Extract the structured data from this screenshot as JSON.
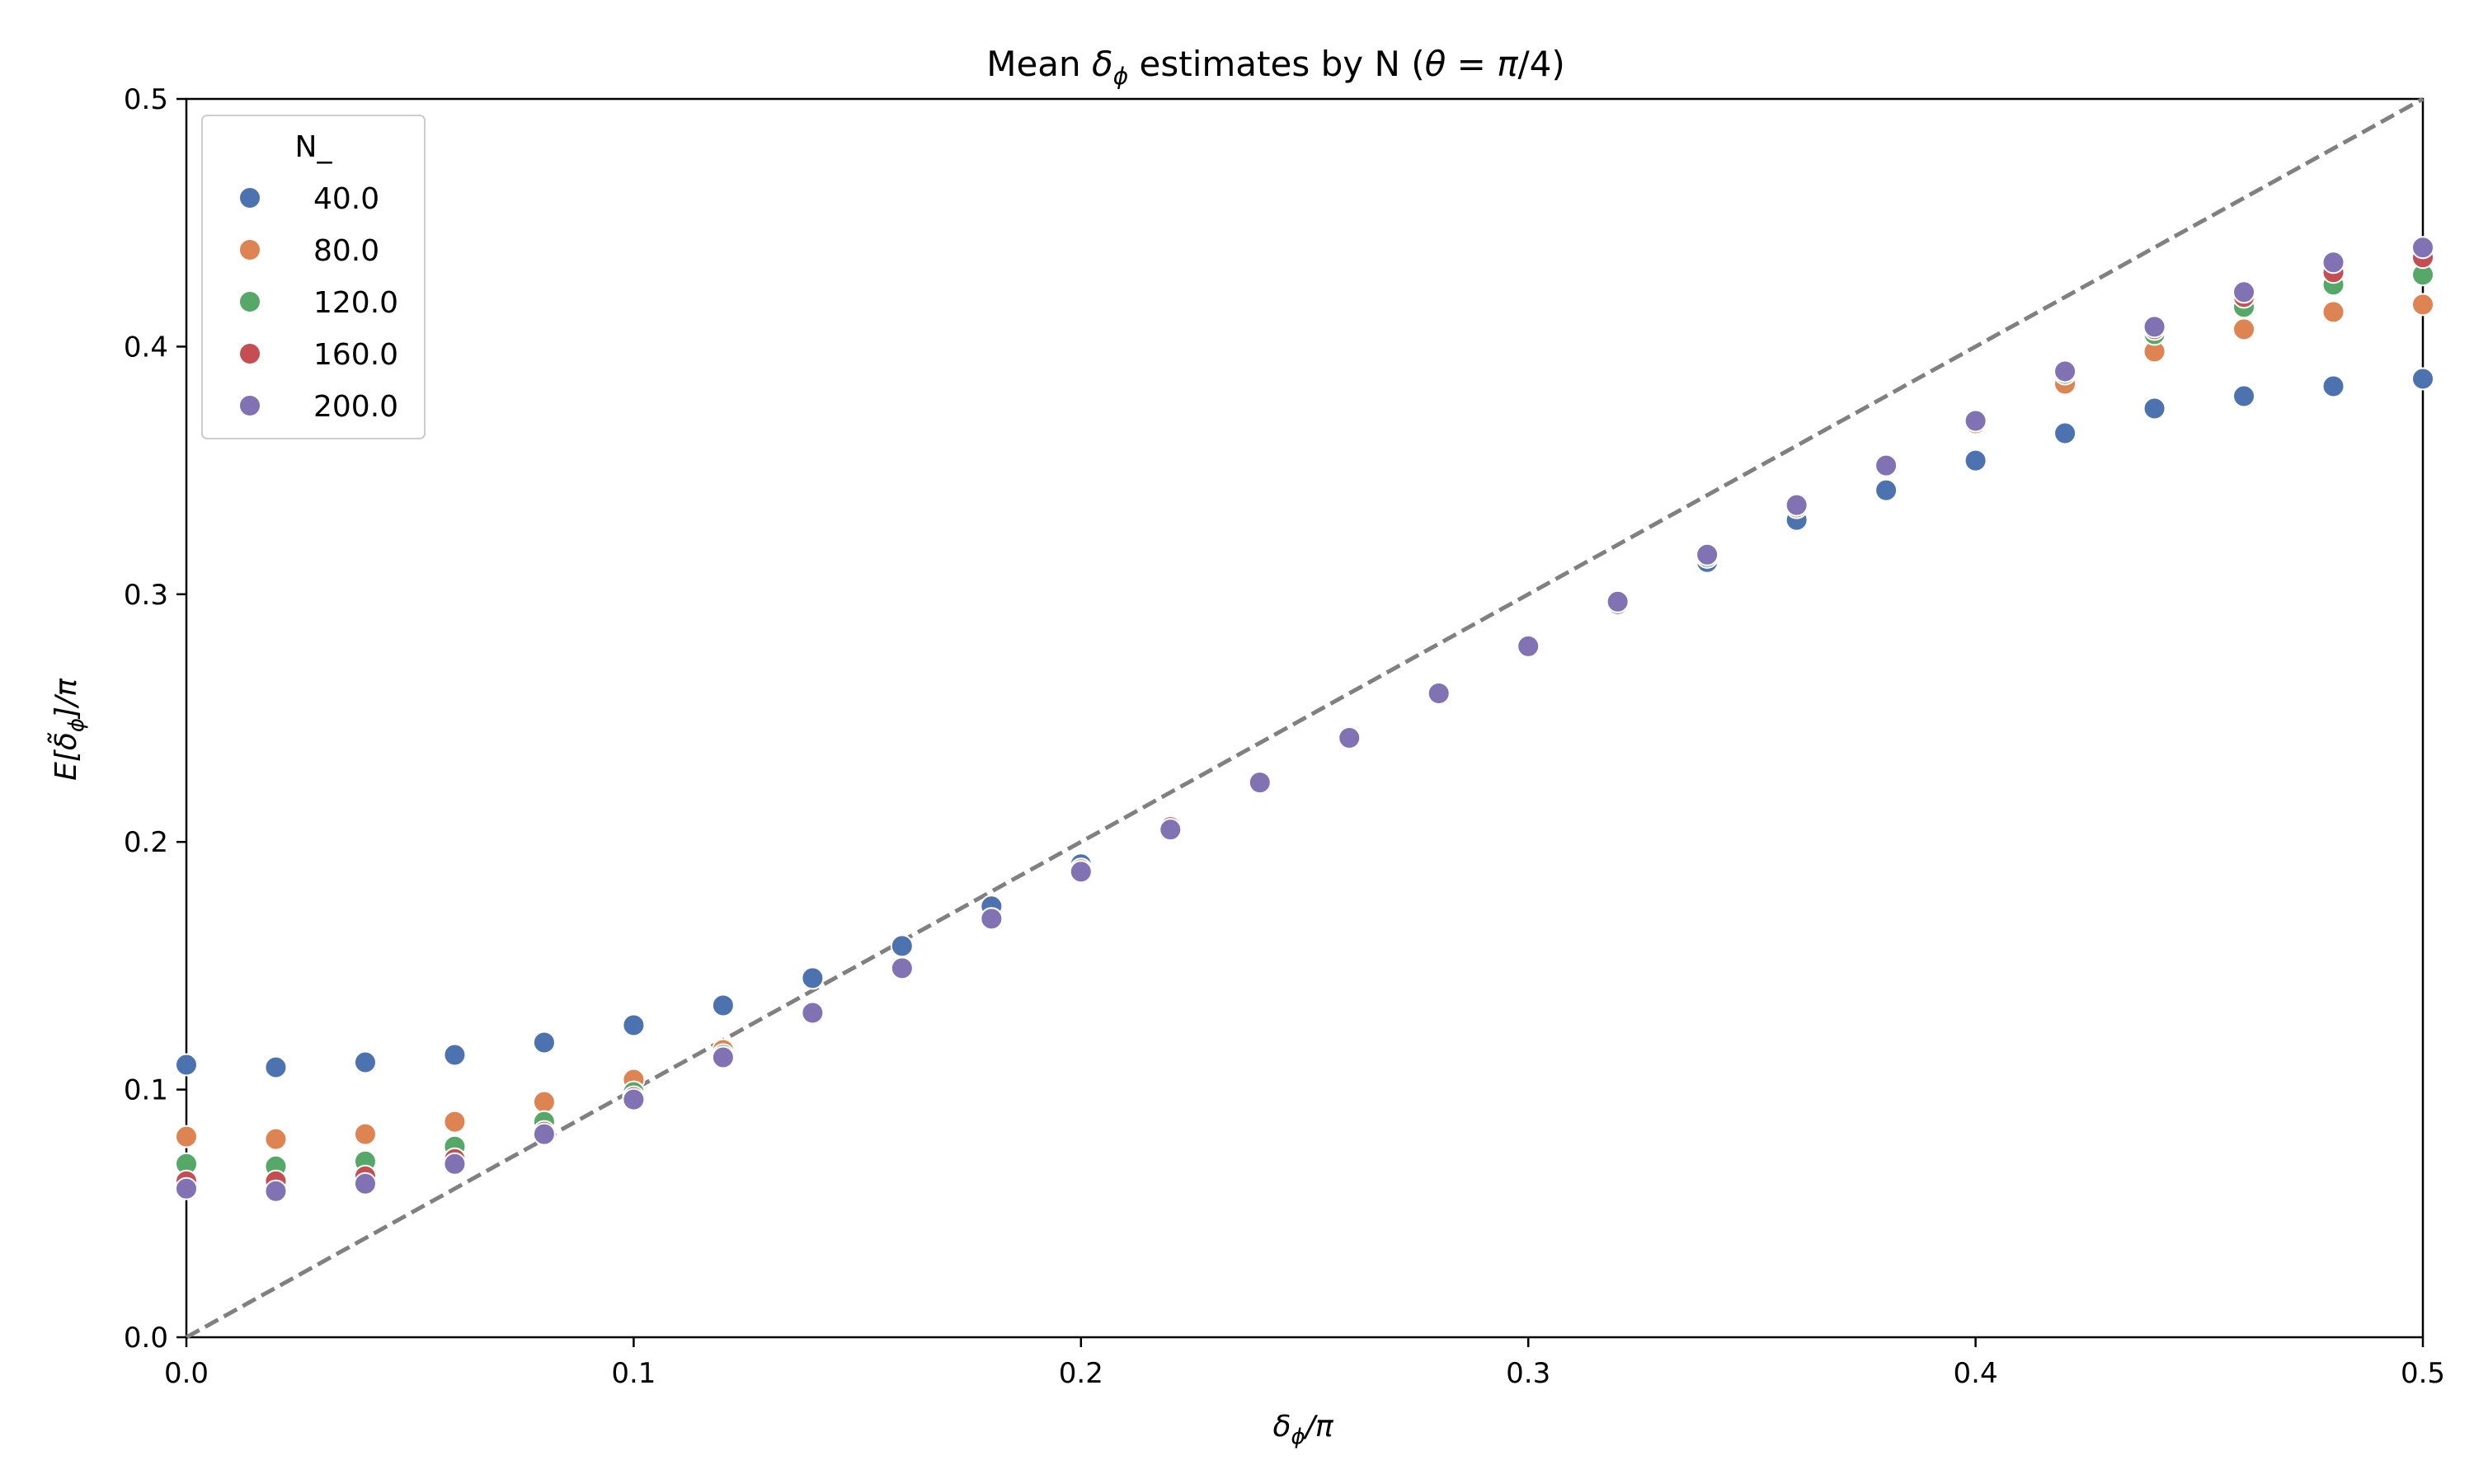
{
  "chart_data": {
    "type": "scatter",
    "title": "Mean δ_ϕ estimates by N (θ = π/4)",
    "xlabel": "δ_ϕ/π",
    "ylabel": "E[δ̃_ϕ]/π",
    "xlim": [
      0.0,
      0.5
    ],
    "ylim": [
      0.0,
      0.5
    ],
    "xticks": [
      "0.0",
      "0.1",
      "0.2",
      "0.3",
      "0.4",
      "0.5"
    ],
    "yticks": [
      "0.0",
      "0.1",
      "0.2",
      "0.3",
      "0.4",
      "0.5"
    ],
    "grid": false,
    "legend": {
      "title": "N_",
      "position": "top-left"
    },
    "reference_line": {
      "style": "dashed",
      "color": "#808080",
      "x": [
        0.0,
        0.5
      ],
      "y": [
        0.0,
        0.5
      ]
    },
    "x": [
      0.0,
      0.02,
      0.04,
      0.06,
      0.08,
      0.1,
      0.12,
      0.14,
      0.16,
      0.18,
      0.2,
      0.22,
      0.24,
      0.26,
      0.28,
      0.3,
      0.32,
      0.34,
      0.36,
      0.38,
      0.4,
      0.42,
      0.44,
      0.46,
      0.48,
      0.5
    ],
    "series": [
      {
        "name": "40.0",
        "color": "#4c72b0",
        "values": [
          0.11,
          0.109,
          0.111,
          0.114,
          0.119,
          0.126,
          0.134,
          0.145,
          0.158,
          0.174,
          0.191,
          0.206,
          0.224,
          0.242,
          0.26,
          0.279,
          0.296,
          0.313,
          0.33,
          0.342,
          0.354,
          0.365,
          0.375,
          0.38,
          0.384,
          0.387
        ]
      },
      {
        "name": "80.0",
        "color": "#dd8452",
        "values": [
          0.081,
          0.08,
          0.082,
          0.087,
          0.095,
          0.104,
          0.116,
          0.131,
          0.149,
          0.169,
          0.189,
          0.206,
          0.224,
          0.242,
          0.26,
          0.279,
          0.297,
          0.315,
          0.335,
          0.352,
          0.369,
          0.385,
          0.398,
          0.407,
          0.414,
          0.417
        ]
      },
      {
        "name": "120.0",
        "color": "#55a868",
        "values": [
          0.07,
          0.069,
          0.071,
          0.077,
          0.087,
          0.099,
          0.114,
          0.131,
          0.149,
          0.169,
          0.188,
          0.206,
          0.224,
          0.242,
          0.26,
          0.279,
          0.297,
          0.315,
          0.336,
          0.352,
          0.37,
          0.389,
          0.405,
          0.416,
          0.425,
          0.429
        ]
      },
      {
        "name": "160.0",
        "color": "#c44e52",
        "values": [
          0.063,
          0.063,
          0.065,
          0.072,
          0.083,
          0.097,
          0.113,
          0.131,
          0.149,
          0.169,
          0.188,
          0.206,
          0.224,
          0.242,
          0.26,
          0.279,
          0.297,
          0.316,
          0.336,
          0.352,
          0.37,
          0.39,
          0.407,
          0.42,
          0.43,
          0.436
        ]
      },
      {
        "name": "200.0",
        "color": "#8172b3",
        "values": [
          0.06,
          0.059,
          0.062,
          0.07,
          0.082,
          0.096,
          0.113,
          0.131,
          0.149,
          0.169,
          0.188,
          0.205,
          0.224,
          0.242,
          0.26,
          0.279,
          0.297,
          0.316,
          0.336,
          0.352,
          0.37,
          0.39,
          0.408,
          0.422,
          0.434,
          0.44
        ]
      }
    ]
  }
}
